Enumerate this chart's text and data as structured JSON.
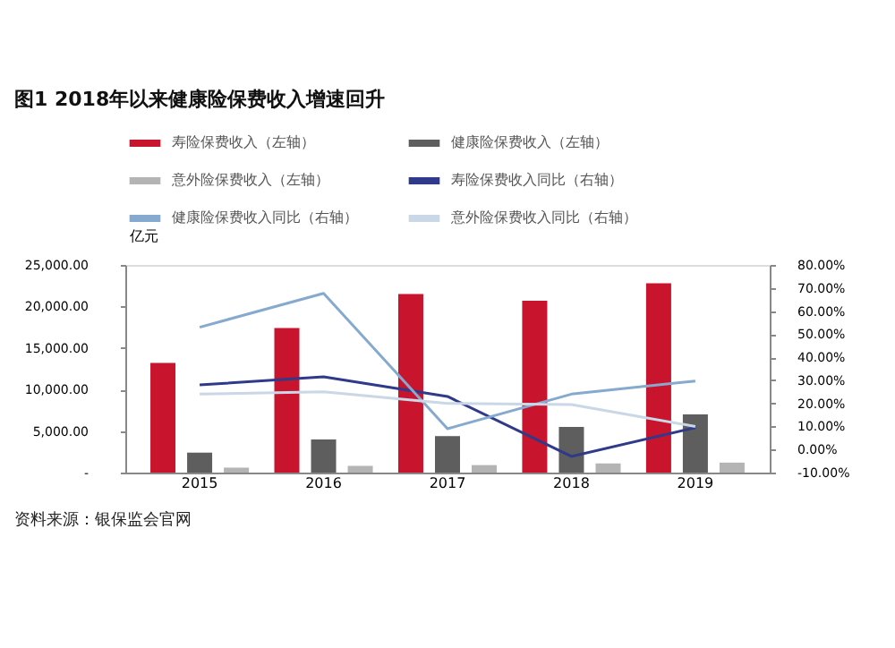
{
  "chart_data": {
    "type": "bar",
    "title": "图1   2018年以来健康险保费收入增速回升",
    "categories": [
      "2015",
      "2016",
      "2017",
      "2018",
      "2019"
    ],
    "series": [
      {
        "name": "寿险保费收入（左轴）",
        "color": "#c8142c",
        "values": [
          13200,
          17400,
          21500,
          20700,
          22800
        ]
      },
      {
        "name": "健康险保费收入（左轴）",
        "color": "#5e5e5e",
        "values": [
          2400,
          4000,
          4400,
          5500,
          7000
        ]
      },
      {
        "name": "意外险保费收入（左轴）",
        "color": "#b4b4b4",
        "values": [
          600,
          800,
          900,
          1100,
          1200
        ]
      },
      {
        "name": "寿险保费收入同比（右轴）",
        "type": "line",
        "axis": "y2",
        "color": "#2f3a8a",
        "values": [
          28,
          31.5,
          23,
          -3,
          9.5
        ]
      },
      {
        "name": "健康险保费收入同比（右轴）",
        "type": "line",
        "axis": "y2",
        "color": "#86a9cf",
        "values": [
          53,
          67.7,
          9,
          24,
          29.7
        ]
      },
      {
        "name": "意外险保费收入同比（右轴）",
        "type": "line",
        "axis": "y2",
        "color": "#c9d7e6",
        "values": [
          24,
          25,
          20,
          19.5,
          10
        ]
      }
    ],
    "ylabel": "亿元",
    "ylim": [
      0,
      25000
    ],
    "yticks": [
      {
        "value": 0,
        "label": "-"
      },
      {
        "value": 5000,
        "label": "5,000.00"
      },
      {
        "value": 10000,
        "label": "10,000.00"
      },
      {
        "value": 15000,
        "label": "15,000.00"
      },
      {
        "value": 20000,
        "label": "20,000.00"
      },
      {
        "value": 25000,
        "label": "25,000.00"
      }
    ],
    "y2lim": [
      -10,
      80
    ],
    "y2ticks": [
      {
        "value": -10,
        "label": "-10.00%"
      },
      {
        "value": 0,
        "label": "0.00%"
      },
      {
        "value": 10,
        "label": "10.00%"
      },
      {
        "value": 20,
        "label": "20.00%"
      },
      {
        "value": 30,
        "label": "30.00%"
      },
      {
        "value": 40,
        "label": "40.00%"
      },
      {
        "value": 50,
        "label": "50.00%"
      },
      {
        "value": 60,
        "label": "60.00%"
      },
      {
        "value": 70,
        "label": "70.00%"
      },
      {
        "value": 80,
        "label": "80.00%"
      }
    ],
    "grid": false,
    "legend": "top",
    "annotations": [
      "资料来源：银保监会官网"
    ]
  }
}
